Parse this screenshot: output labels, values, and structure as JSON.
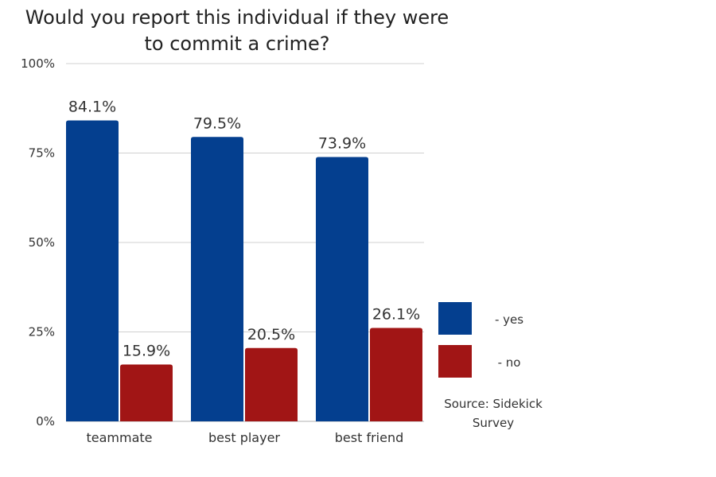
{
  "chart_data": {
    "type": "bar",
    "title_lines": [
      "Would you report this individual if they were",
      "to commit a crime?"
    ],
    "categories": [
      "teammate",
      "best player",
      "best friend"
    ],
    "series": [
      {
        "name": "- yes",
        "color": "#043f8f",
        "values": [
          84.1,
          79.5,
          73.9
        ],
        "labels": [
          "84.1%",
          "79.5%",
          "73.9%"
        ]
      },
      {
        "name": "- no",
        "color": "#a11515",
        "values": [
          15.9,
          20.5,
          26.1
        ],
        "labels": [
          "15.9%",
          "20.5%",
          "26.1%"
        ]
      }
    ],
    "ylim": [
      0,
      100
    ],
    "yticks": [
      {
        "value": 0,
        "label": "0%"
      },
      {
        "value": 25,
        "label": "25%"
      },
      {
        "value": 50,
        "label": "50%"
      },
      {
        "value": 75,
        "label": "75%"
      },
      {
        "value": 100,
        "label": "100%"
      }
    ],
    "grid": true,
    "legend_position": "right",
    "source_lines": [
      "Source: Sidekick",
      "Survey"
    ]
  }
}
